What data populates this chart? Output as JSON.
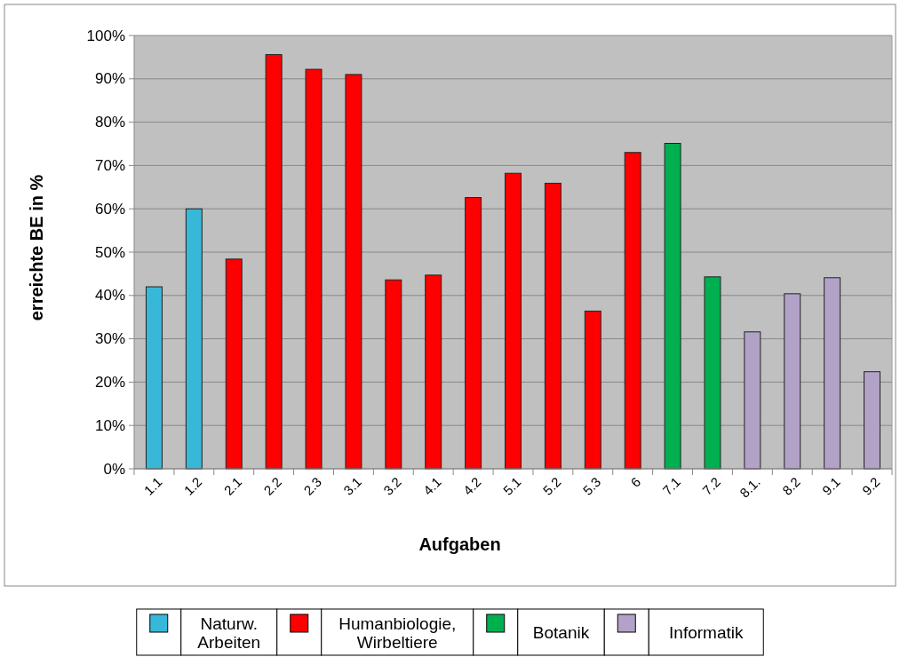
{
  "chart_data": {
    "type": "bar",
    "xlabel": "Aufgaben",
    "ylabel": "erreichte BE in %",
    "categories": [
      "1.1",
      "1.2",
      "2.1",
      "2.2",
      "2.3",
      "3.1",
      "3.2",
      "4.1",
      "4.2",
      "5.1",
      "5.2",
      "5.3",
      "6",
      "7.1",
      "7.2",
      "8.1.",
      "8.2",
      "9.1",
      "9.2"
    ],
    "stacked": true,
    "series": [
      {
        "name": "Naturw. Arbeiten",
        "color": "#38b8d8",
        "values": [
          42,
          60,
          null,
          null,
          null,
          null,
          null,
          null,
          null,
          null,
          null,
          null,
          null,
          null,
          null,
          null,
          null,
          null,
          null
        ]
      },
      {
        "name": "Humanbiologie, Wirbeltiere",
        "color": "#ff0000",
        "values": [
          null,
          null,
          48.4,
          95.6,
          92.2,
          91,
          43.6,
          44.7,
          62.6,
          68.2,
          65.9,
          36.4,
          73,
          null,
          null,
          null,
          null,
          null,
          null
        ]
      },
      {
        "name": "Botanik",
        "color": "#00b050",
        "values": [
          null,
          null,
          null,
          null,
          null,
          null,
          null,
          null,
          null,
          null,
          null,
          null,
          null,
          75.1,
          44.3,
          null,
          null,
          null,
          null
        ]
      },
      {
        "name": "Informatik",
        "color": "#b2a2c8",
        "values": [
          null,
          null,
          null,
          null,
          null,
          null,
          null,
          null,
          null,
          null,
          null,
          null,
          null,
          null,
          null,
          31.6,
          40.4,
          44.1,
          22.4
        ]
      }
    ],
    "ylim": [
      0,
      100
    ],
    "yticks": [
      {
        "value": 0,
        "label": "0%"
      },
      {
        "value": 10,
        "label": "10%"
      },
      {
        "value": 20,
        "label": "20%"
      },
      {
        "value": 30,
        "label": "30%"
      },
      {
        "value": 40,
        "label": "40%"
      },
      {
        "value": 50,
        "label": "50%"
      },
      {
        "value": 60,
        "label": "60%"
      },
      {
        "value": 70,
        "label": "70%"
      },
      {
        "value": 80,
        "label": "80%"
      },
      {
        "value": 90,
        "label": "90%"
      },
      {
        "value": 100,
        "label": "100%"
      }
    ],
    "grid": "y",
    "legend": "bottom"
  }
}
